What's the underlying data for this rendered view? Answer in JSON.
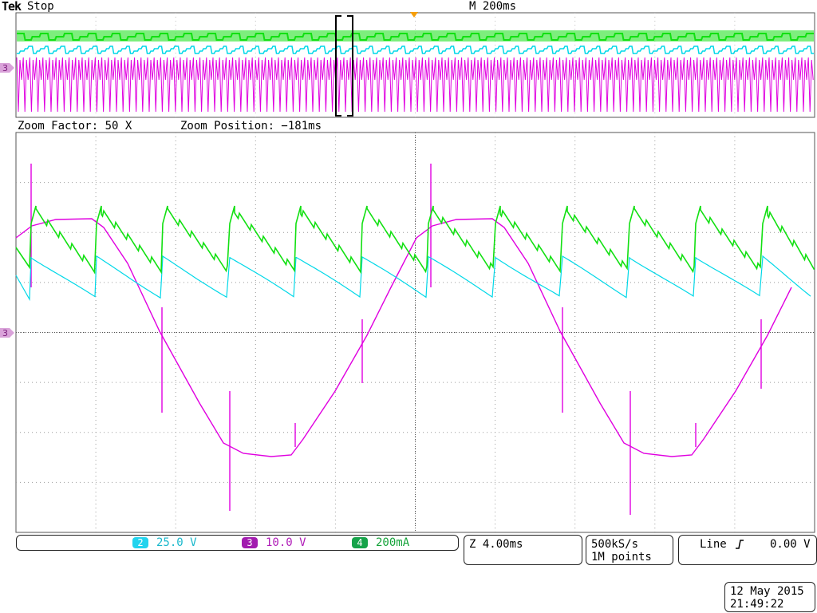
{
  "header": {
    "brand": "Tek",
    "status": "Stop",
    "timebase": "M 200ms"
  },
  "zoom": {
    "factor": "Zoom Factor: 50 X",
    "position": "Zoom Position: −181ms"
  },
  "reference_marker": "3",
  "channels": [
    {
      "number": "2",
      "scale": "25.0 V",
      "color": "#22d3ee"
    },
    {
      "number": "3",
      "scale": "10.0 V",
      "color": "#a21caf"
    },
    {
      "number": "4",
      "scale": "200mA",
      "color": "#16a34a"
    }
  ],
  "horizontal": {
    "zoom_scale": "Z 4.00ms"
  },
  "acquisition": {
    "rate": "500kS/s",
    "record": "1M points"
  },
  "trigger": {
    "source": "Line",
    "slope_icon": "rising-edge-icon",
    "level": "0.00 V"
  },
  "datetime": {
    "date": "12 May 2015",
    "time": "21:49:22"
  },
  "trace_colors": {
    "ch2": "#00d8e8",
    "ch3": "#e000e0",
    "ch4": "#12e012"
  }
}
